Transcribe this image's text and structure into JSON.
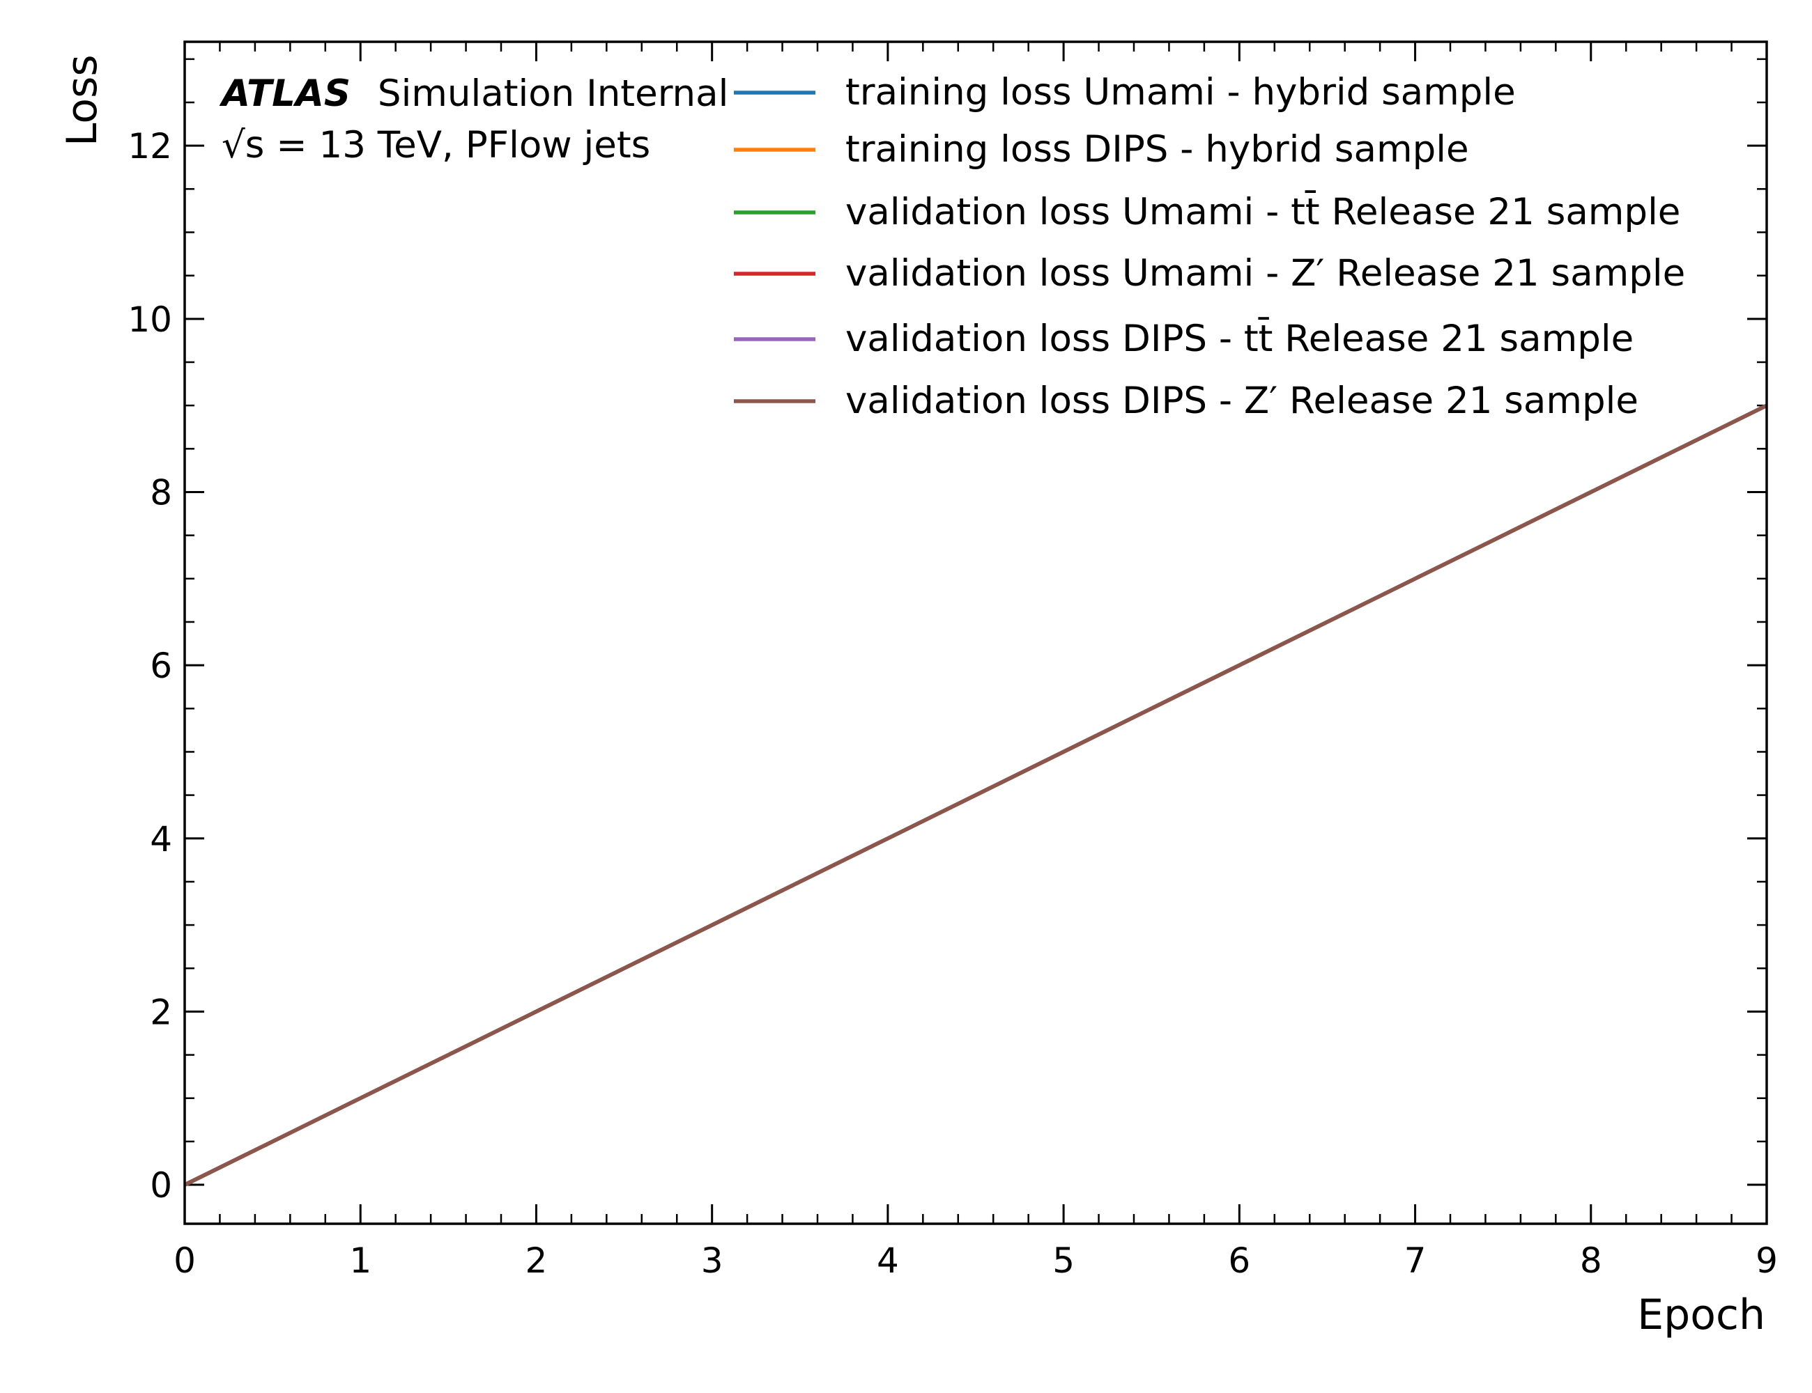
{
  "chart_data": {
    "type": "line",
    "xlabel": "Epoch",
    "ylabel": "Loss",
    "xlim": [
      0,
      9
    ],
    "ylim": [
      -0.45,
      13.2
    ],
    "xticks": [
      0,
      1,
      2,
      3,
      4,
      5,
      6,
      7,
      8,
      9
    ],
    "yticks": [
      0,
      2,
      4,
      6,
      8,
      10,
      12
    ],
    "xtick_labels": [
      "0",
      "1",
      "2",
      "3",
      "4",
      "5",
      "6",
      "7",
      "8",
      "9"
    ],
    "ytick_labels": [
      "0",
      "2",
      "4",
      "6",
      "8",
      "10",
      "12"
    ],
    "grid": false,
    "legend_position": "top-right",
    "annotation": {
      "experiment": "ATLAS",
      "status": "Simulation Internal",
      "energy_line": "√s = 13 TeV, PFlow jets"
    },
    "x": [
      0,
      1,
      2,
      3,
      4,
      5,
      6,
      7,
      8,
      9
    ],
    "series": [
      {
        "name": "training loss Umami - hybrid sample",
        "color": "#1f77b4",
        "values": [
          0,
          1,
          2,
          3,
          4,
          5,
          6,
          7,
          8,
          9
        ]
      },
      {
        "name": "training loss DIPS - hybrid sample",
        "color": "#ff7f0e",
        "values": [
          0,
          1,
          2,
          3,
          4,
          5,
          6,
          7,
          8,
          9
        ]
      },
      {
        "name": "validation loss Umami - tt̄ Release 21 sample",
        "color": "#2ca02c",
        "values": [
          0,
          1,
          2,
          3,
          4,
          5,
          6,
          7,
          8,
          9
        ]
      },
      {
        "name": "validation loss Umami - Z′ Release 21 sample",
        "color": "#d62728",
        "values": [
          0,
          1,
          2,
          3,
          4,
          5,
          6,
          7,
          8,
          9
        ]
      },
      {
        "name": "validation loss DIPS - tt̄ Release 21 sample",
        "color": "#9467bd",
        "values": [
          0,
          1,
          2,
          3,
          4,
          5,
          6,
          7,
          8,
          9
        ]
      },
      {
        "name": "validation loss DIPS - Z′ Release 21 sample",
        "color": "#8c564b",
        "values": [
          0,
          1,
          2,
          3,
          4,
          5,
          6,
          7,
          8,
          9
        ]
      }
    ]
  }
}
